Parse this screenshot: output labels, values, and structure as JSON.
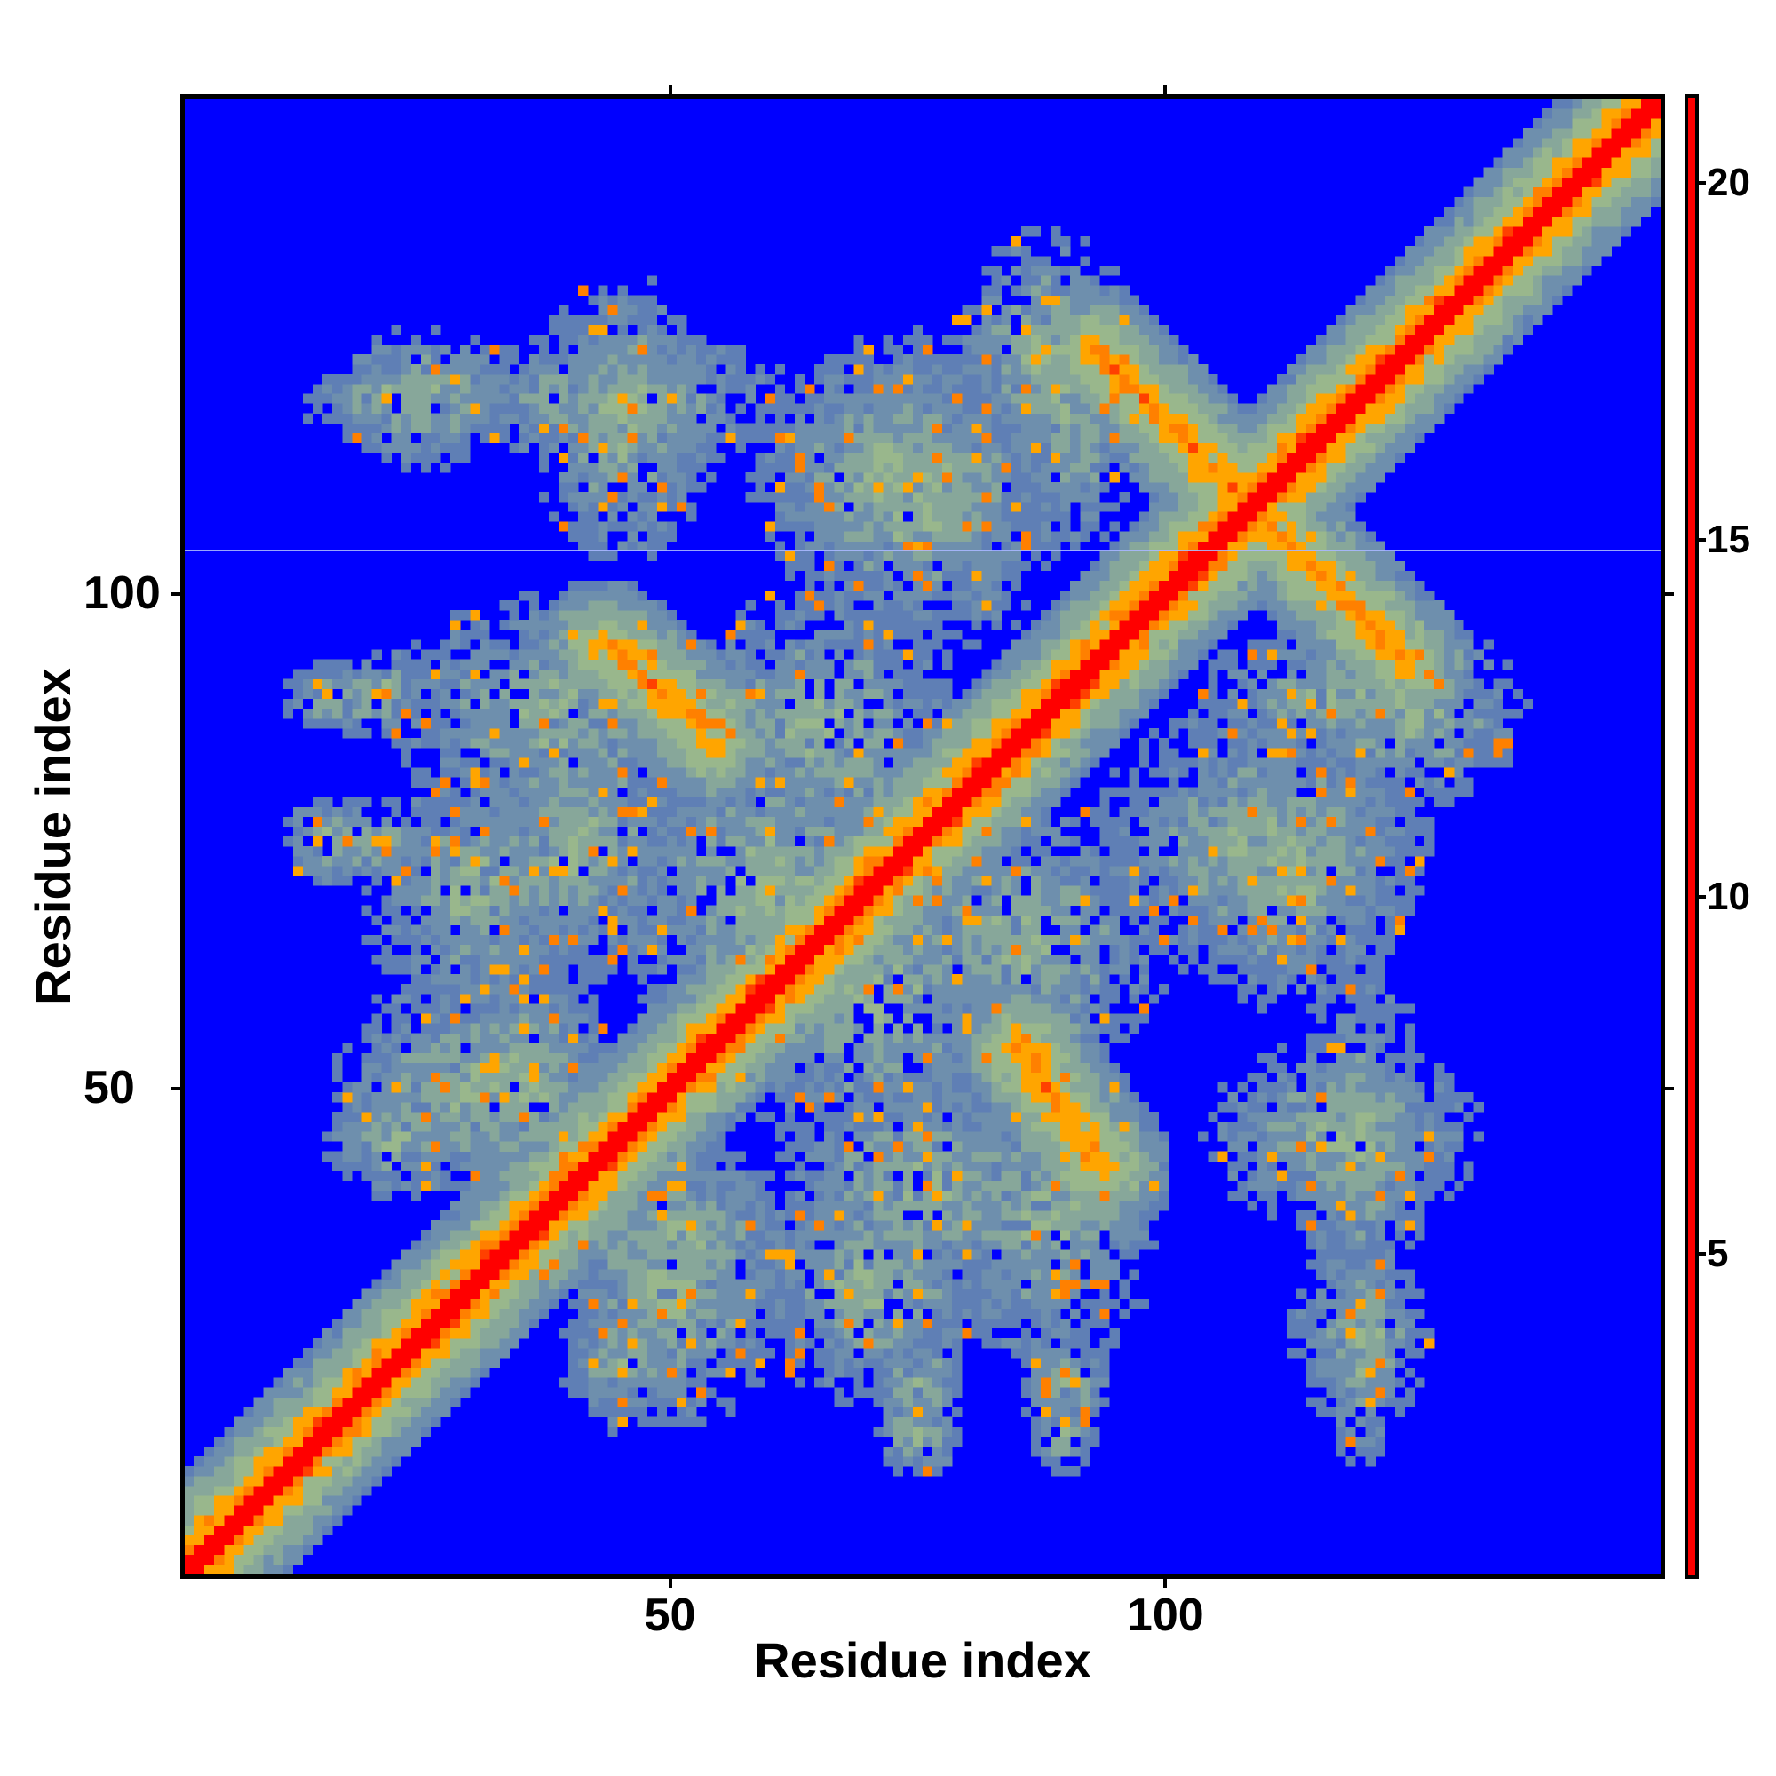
{
  "chart_data": {
    "type": "heatmap",
    "title": "",
    "xlabel": "Residue index",
    "ylabel": "Residue index",
    "n_residues": 150,
    "xlim": [
      1,
      150
    ],
    "ylim": [
      1,
      150
    ],
    "x_ticks": [
      50,
      100
    ],
    "y_ticks": [
      50,
      100
    ],
    "colorbar": {
      "ticks": [
        5,
        10,
        15,
        20
      ],
      "range": [
        0.5,
        21.2
      ],
      "colors": [
        {
          "min": 0.5,
          "max": 3,
          "color": "#ff0000"
        },
        {
          "min": 3,
          "max": 5,
          "color": "#ff4000"
        },
        {
          "min": 5,
          "max": 6.5,
          "color": "#ff8000"
        },
        {
          "min": 6.5,
          "max": 8.5,
          "color": "#ffa500"
        },
        {
          "min": 8.5,
          "max": 11,
          "color": "#99b78c"
        },
        {
          "min": 11,
          "max": 14,
          "color": "#87a79a"
        },
        {
          "min": 14,
          "max": 17,
          "color": "#6e8fad"
        },
        {
          "min": 17,
          "max": 20,
          "color": "#5f7fb5"
        },
        {
          "min": 20,
          "max": 21.2,
          "color": "#0000ff"
        }
      ]
    },
    "diagonal_band": {
      "from": 1,
      "to": 150
    },
    "anti_diagonal_contacts": [
      {
        "x_from": 93,
        "y_from": 125,
        "x_to": 125,
        "y_to": 93
      },
      {
        "x_from": 43,
        "y_from": 95,
        "x_to": 53,
        "y_to": 87
      },
      {
        "x_from": 85,
        "y_from": 54,
        "x_to": 94,
        "y_to": 42
      }
    ],
    "contact_clusters": [
      {
        "x": 21,
        "y": 120,
        "rx": 8,
        "ry": 3
      },
      {
        "x": 45,
        "y": 120,
        "rx": 14,
        "ry": 6
      },
      {
        "x": 72,
        "y": 113,
        "rx": 12,
        "ry": 10
      },
      {
        "x": 90,
        "y": 118,
        "rx": 6,
        "ry": 12
      },
      {
        "x": 38,
        "y": 88,
        "rx": 14,
        "ry": 10
      },
      {
        "x": 30,
        "y": 70,
        "rx": 10,
        "ry": 10
      },
      {
        "x": 60,
        "y": 70,
        "rx": 14,
        "ry": 14
      },
      {
        "x": 86,
        "y": 65,
        "rx": 12,
        "ry": 12
      },
      {
        "x": 110,
        "y": 75,
        "rx": 14,
        "ry": 12
      },
      {
        "x": 30,
        "y": 50,
        "rx": 12,
        "ry": 10
      },
      {
        "x": 50,
        "y": 35,
        "rx": 12,
        "ry": 8
      },
      {
        "x": 75,
        "y": 40,
        "rx": 12,
        "ry": 10
      },
      {
        "x": 118,
        "y": 45,
        "rx": 12,
        "ry": 8
      },
      {
        "x": 125,
        "y": 88,
        "rx": 10,
        "ry": 8
      },
      {
        "x": 120,
        "y": 25,
        "rx": 6,
        "ry": 8
      },
      {
        "x": 45,
        "y": 22,
        "rx": 5,
        "ry": 6
      },
      {
        "x": 75,
        "y": 20,
        "rx": 4,
        "ry": 5
      },
      {
        "x": 90,
        "y": 20,
        "rx": 4,
        "ry": 5
      },
      {
        "x": 15,
        "y": 75,
        "rx": 4,
        "ry": 4
      },
      {
        "x": 15,
        "y": 90,
        "rx": 4,
        "ry": 3
      }
    ],
    "horizontal_line_at_y": 104.5
  }
}
